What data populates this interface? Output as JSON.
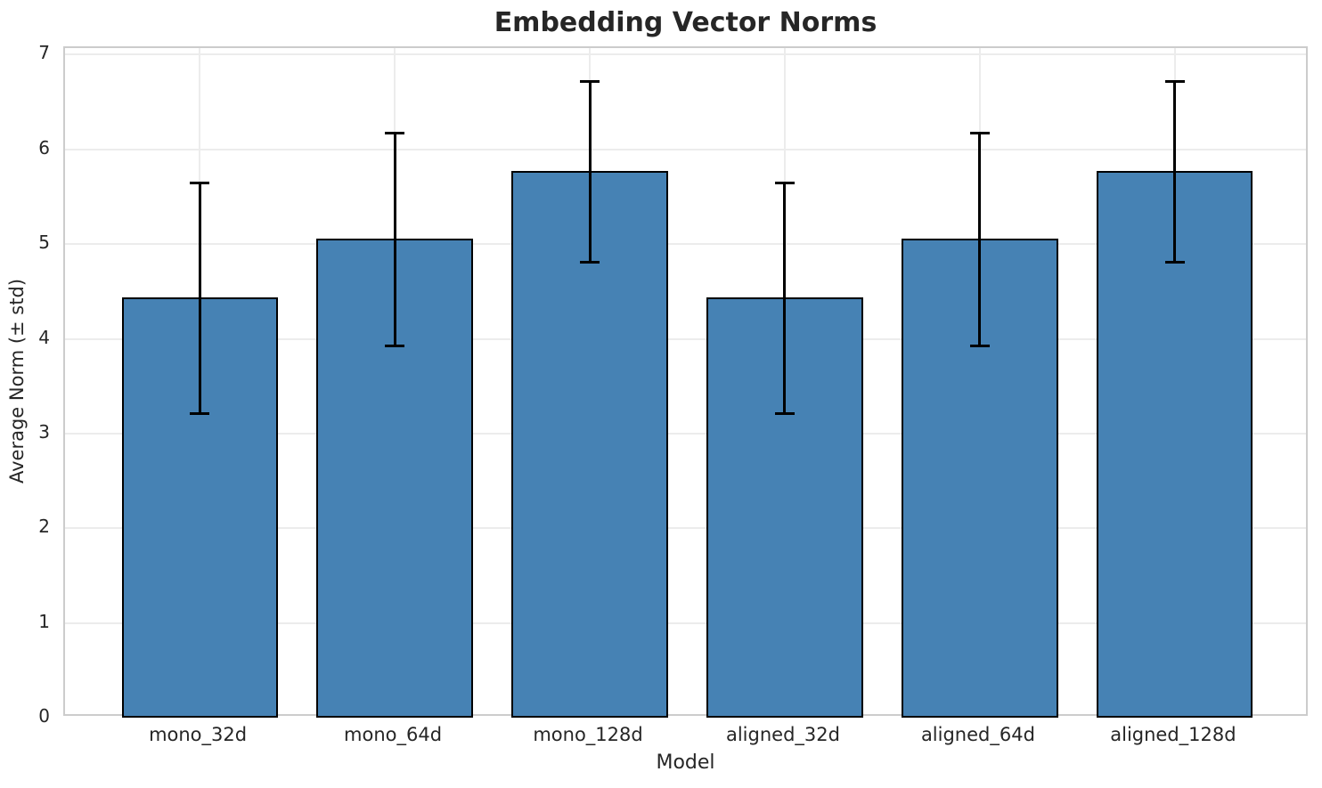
{
  "chart_data": {
    "type": "bar",
    "title": "Embedding Vector Norms",
    "xlabel": "Model",
    "ylabel": "Average Norm (± std)",
    "categories": [
      "mono_32d",
      "mono_64d",
      "mono_128d",
      "aligned_32d",
      "aligned_64d",
      "aligned_128d"
    ],
    "series": [
      {
        "name": "Average Norm",
        "values": [
          4.43,
          5.05,
          5.76,
          4.43,
          5.05,
          5.76
        ],
        "errors": [
          1.22,
          1.13,
          0.96,
          1.22,
          1.13,
          0.96
        ]
      }
    ],
    "yticks": [
      0,
      1,
      2,
      3,
      4,
      5,
      6,
      7
    ],
    "ylim": [
      0,
      7.07
    ],
    "bar_relative_width": 0.8,
    "grid": "both",
    "legend_position": "none",
    "colors": {
      "bar_fill": "#4682B4",
      "bar_edge": "#000000",
      "error_bar": "#000000",
      "grid": "#ececec",
      "spine": "#cccccc",
      "text": "#262626",
      "background": "#ffffff"
    }
  }
}
